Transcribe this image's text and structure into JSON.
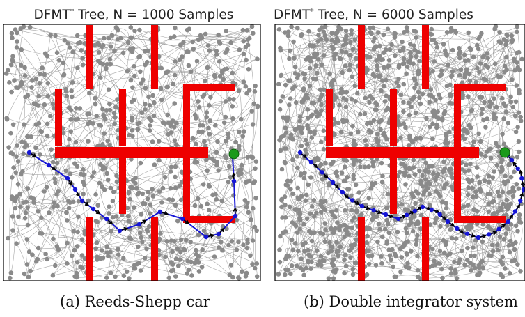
{
  "panels": [
    {
      "title_prefix": "DFMT",
      "title_star": "*",
      "title_rest": " Tree, N = 1000 Samples",
      "caption": "(a) Reeds-Shepp car"
    },
    {
      "title_prefix": "DFMT",
      "title_star": "*",
      "title_rest": " Tree, N = 6000 Samples",
      "caption": "(b) Double integrator system"
    }
  ],
  "colors": {
    "obstacle": "#ee0000",
    "tree": "#8a8a8a",
    "path": "#1515d6",
    "arrow": "#000000",
    "goal": "#1a9a1a",
    "frame": "#000000"
  }
}
